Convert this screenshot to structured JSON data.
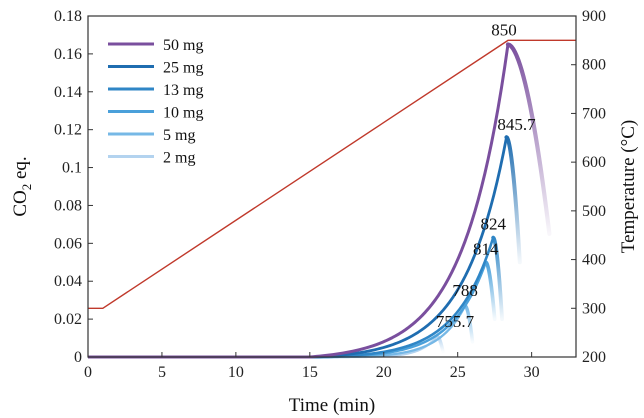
{
  "chart_data": {
    "type": "line",
    "xlabel": "Time (min)",
    "ylabel_left_main": "CO",
    "ylabel_left_sub": "2",
    "ylabel_left_tail": " eq.",
    "ylabel_right": "Temperature (°C)",
    "xlim": [
      0,
      33
    ],
    "ylim_left": [
      0,
      0.18
    ],
    "ylim_right": [
      200,
      900
    ],
    "x_ticks": [
      0,
      5,
      10,
      15,
      20,
      25,
      30
    ],
    "x_tick_labels": [
      "0",
      "5",
      "10",
      "15",
      "20",
      "25",
      "30"
    ],
    "y_left_ticks": [
      0,
      0.02,
      0.04,
      0.06,
      0.08,
      0.1,
      0.12,
      0.14,
      0.16,
      0.18
    ],
    "y_left_tick_labels": [
      "0",
      "0.02",
      "0.04",
      "0.06",
      "0.08",
      "0.1",
      "0.12",
      "0.14",
      "0.16",
      "0.18"
    ],
    "y_right_ticks": [
      200,
      300,
      400,
      500,
      600,
      700,
      800,
      900
    ],
    "y_right_tick_labels": [
      "200",
      "300",
      "400",
      "500",
      "600",
      "700",
      "800",
      "900"
    ],
    "legend_placement": "top-left",
    "series": [
      {
        "name": "50 mg",
        "color": "#7a4f9e",
        "peak_x": 28.4,
        "peak_y": 0.165,
        "end_x": 31.2,
        "end_y": 0.065,
        "start_x": 15.0
      },
      {
        "name": "25 mg",
        "color": "#1f6db0",
        "peak_x": 28.3,
        "peak_y": 0.116,
        "end_x": 29.2,
        "end_y": 0.05,
        "start_x": 15.5
      },
      {
        "name": "13 mg",
        "color": "#2f86c6",
        "peak_x": 27.4,
        "peak_y": 0.063,
        "end_x": 28.0,
        "end_y": 0.02,
        "start_x": 16.0
      },
      {
        "name": "10 mg",
        "color": "#4aa0da",
        "peak_x": 26.9,
        "peak_y": 0.05,
        "end_x": 27.5,
        "end_y": 0.02,
        "start_x": 16.5
      },
      {
        "name": "5 mg",
        "color": "#76b8e6",
        "peak_x": 25.5,
        "peak_y": 0.027,
        "end_x": 26.0,
        "end_y": 0.008,
        "start_x": 17.5
      },
      {
        "name": "2 mg",
        "color": "#b3d3ef",
        "peak_x": 23.6,
        "peak_y": 0.011,
        "end_x": 24.0,
        "end_y": 0.003,
        "start_x": 18.5
      }
    ],
    "temperature": {
      "color": "#c0392b",
      "points": [
        [
          0,
          300
        ],
        [
          1,
          300
        ],
        [
          28.4,
          850
        ],
        [
          33,
          850
        ]
      ]
    },
    "annotations": [
      {
        "text": "850",
        "x": 28.4,
        "y": 0.165
      },
      {
        "text": "845.7",
        "x": 28.3,
        "y": 0.116
      },
      {
        "text": "824",
        "x": 27.4,
        "y": 0.063
      },
      {
        "text": "814",
        "x": 26.9,
        "y": 0.05
      },
      {
        "text": "788",
        "x": 25.5,
        "y": 0.027
      },
      {
        "text": "755.7",
        "x": 23.6,
        "y": 0.011
      }
    ]
  }
}
